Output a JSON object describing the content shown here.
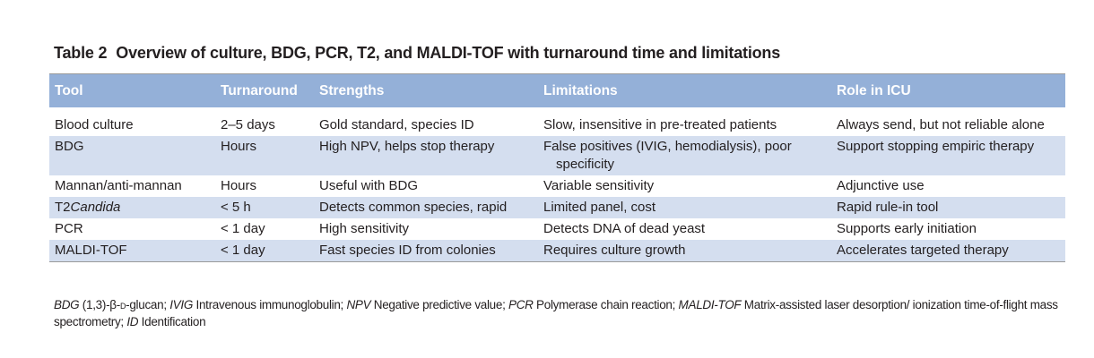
{
  "title": {
    "number": "Table 2",
    "text": "Overview of culture, BDG, PCR, T2, and MALDI-TOF with turnaround time and limitations"
  },
  "headers": [
    "Tool",
    "Turnaround",
    "Strengths",
    "Limitations",
    "Role in ICU"
  ],
  "rows": [
    {
      "tool": "Blood culture",
      "tool_italic": "",
      "turnaround": "2–5 days",
      "strengths": "Gold standard, species ID",
      "limitations": "Slow, insensitive in pre-treated patients",
      "role": "Always send, but not reliable alone"
    },
    {
      "tool": "BDG",
      "tool_italic": "",
      "turnaround": "Hours",
      "strengths": "High NPV, helps stop therapy",
      "limitations": "False positives (IVIG, hemodialysis), poor specificity",
      "role": "Support stopping empiric therapy"
    },
    {
      "tool": "Mannan/anti-mannan",
      "tool_italic": "",
      "turnaround": "Hours",
      "strengths": "Useful with BDG",
      "limitations": "Variable sensitivity",
      "role": "Adjunctive use"
    },
    {
      "tool": "T2",
      "tool_italic": "Candida",
      "turnaround": "< 5 h",
      "strengths": "Detects common species, rapid",
      "limitations": "Limited panel, cost",
      "role": "Rapid rule-in tool"
    },
    {
      "tool": "PCR",
      "tool_italic": "",
      "turnaround": "< 1 day",
      "strengths": "High sensitivity",
      "limitations": "Detects DNA of dead yeast",
      "role": "Supports early initiation"
    },
    {
      "tool": "MALDI-TOF",
      "tool_italic": "",
      "turnaround": "< 1 day",
      "strengths": "Fast species ID from colonies",
      "limitations": "Requires culture growth",
      "role": "Accelerates targeted therapy"
    }
  ],
  "footnote": [
    {
      "abbr": "BDG",
      "text": " (1,3)-β-"
    },
    {
      "abbr": "",
      "text": "d",
      "smallcaps": true
    },
    {
      "abbr": "",
      "text": "-glucan; "
    },
    {
      "abbr": "IVIG",
      "text": " Intravenous immunoglobulin; "
    },
    {
      "abbr": "NPV",
      "text": " Negative predictive value; "
    },
    {
      "abbr": "PCR",
      "text": " Polymerase chain reaction; "
    },
    {
      "abbr": "MALDI-TOF",
      "text": " Matrix-assisted laser desorption/ ionization time-of-flight mass spectrometry; "
    },
    {
      "abbr": "ID",
      "text": " Identification"
    }
  ]
}
